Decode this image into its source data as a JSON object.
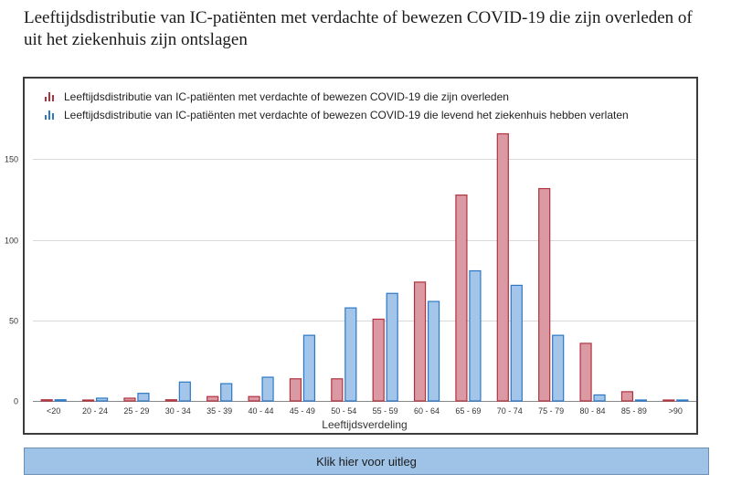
{
  "page": {
    "title": "Leeftijdsdistributie van IC-patiënten met verdachte of bewezen COVID-19 die zijn overleden of uit het ziekenhuis zijn ontslagen",
    "button_label": "Klik hier voor uitleg"
  },
  "colors": {
    "deceased_fill": "#db9aa3",
    "deceased_stroke": "#b1323f",
    "discharged_fill": "#a3c5ea",
    "discharged_stroke": "#2d78c5",
    "gridline": "#d9d9d9",
    "axis": "#888888"
  },
  "chart_data": {
    "type": "bar",
    "title": "",
    "xlabel": "Leeftijdsverdeling",
    "ylabel": "",
    "ylim": [
      0,
      190
    ],
    "yticks": [
      0,
      50,
      100,
      150
    ],
    "grid": true,
    "legend_position": "top-left",
    "categories": [
      "<20",
      "20 - 24",
      "25 - 29",
      "30 - 34",
      "35 - 39",
      "40 - 44",
      "45 - 49",
      "50 - 54",
      "55 - 59",
      "60 - 64",
      "65 - 69",
      "70 - 74",
      "75 - 79",
      "80 - 84",
      "85 - 89",
      ">90"
    ],
    "series": [
      {
        "name": "Leeftijdsdistributie van IC-patiënten met verdachte of bewezen COVID-19 die zijn overleden",
        "values": [
          1,
          0,
          2,
          1,
          3,
          3,
          14,
          14,
          51,
          74,
          128,
          166,
          132,
          36,
          6,
          0
        ]
      },
      {
        "name": "Leeftijdsdistributie van IC-patiënten met verdachte of bewezen COVID-19 die levend het ziekenhuis hebben verlaten",
        "values": [
          1,
          2,
          5,
          12,
          11,
          15,
          41,
          58,
          67,
          62,
          81,
          72,
          41,
          4,
          0,
          0
        ]
      }
    ]
  }
}
